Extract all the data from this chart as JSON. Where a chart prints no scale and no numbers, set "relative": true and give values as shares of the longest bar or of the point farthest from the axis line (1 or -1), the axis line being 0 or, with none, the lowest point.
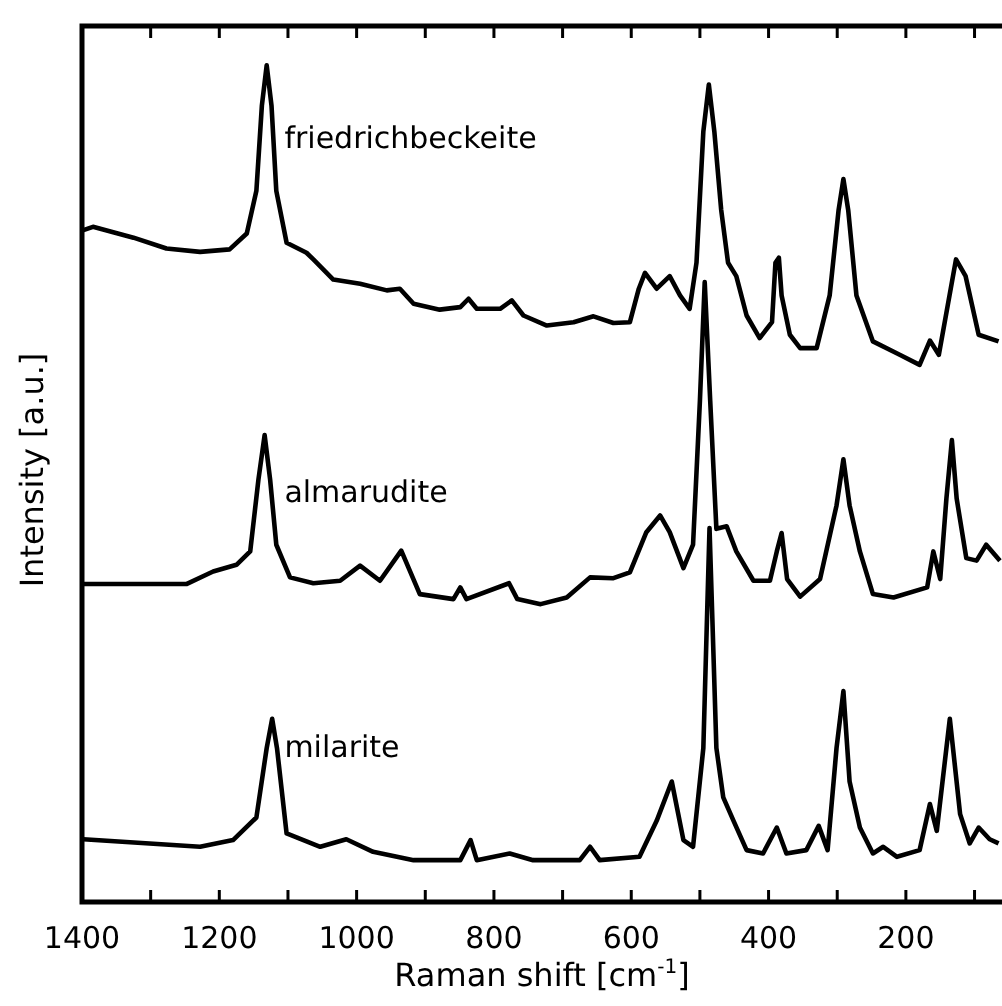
{
  "chart_data": {
    "type": "line",
    "relative": true,
    "xlabel": "Raman shift [cm$^{-1}$]",
    "ylabel": "Intensity [a.u.]",
    "xlim": [
      1400,
      60
    ],
    "xticks": [
      1400,
      {
        "value": 1300,
        "label": null
      },
      1200,
      {
        "value": 1100,
        "label": null
      },
      1000,
      {
        "value": 900,
        "label": null
      },
      800,
      {
        "value": 700,
        "label": null
      },
      600,
      {
        "value": 500,
        "label": null
      },
      400,
      {
        "value": 300,
        "label": null
      },
      200,
      {
        "value": 100,
        "label": null
      }
    ],
    "series": [
      {
        "name": "friedrichbeckeite",
        "color": "#000000",
        "x": [
          1398,
          1384,
          1325,
          1277,
          1228,
          1185,
          1160,
          1146,
          1138,
          1131,
          1124,
          1117,
          1102,
          1073,
          1063,
          1034,
          995,
          956,
          937,
          917,
          879,
          849,
          837,
          825,
          791,
          774,
          757,
          723,
          684,
          655,
          626,
          602,
          589,
          580,
          563,
          544,
          529,
          515,
          505,
          495,
          487,
          479,
          469,
          459,
          447,
          432,
          413,
          395,
          390,
          385,
          381,
          369,
          354,
          330,
          311,
          298,
          291,
          284,
          272,
          248,
          209,
          180,
          165,
          152,
          127,
          113,
          94,
          65
        ],
        "values": [
          0.803,
          0.807,
          0.794,
          0.781,
          0.777,
          0.78,
          0.799,
          0.85,
          0.952,
          1,
          0.952,
          0.85,
          0.788,
          0.776,
          0.768,
          0.744,
          0.739,
          0.731,
          0.733,
          0.715,
          0.708,
          0.711,
          0.721,
          0.709,
          0.709,
          0.719,
          0.701,
          0.689,
          0.693,
          0.7,
          0.692,
          0.693,
          0.733,
          0.752,
          0.733,
          0.748,
          0.725,
          0.709,
          0.764,
          0.921,
          0.977,
          0.921,
          0.827,
          0.764,
          0.748,
          0.701,
          0.674,
          0.693,
          0.764,
          0.77,
          0.725,
          0.678,
          0.662,
          0.662,
          0.725,
          0.827,
          0.864,
          0.827,
          0.725,
          0.67,
          0.654,
          0.642,
          0.671,
          0.654,
          0.768,
          0.748,
          0.678,
          0.67
        ]
      },
      {
        "name": "almarudite",
        "color": "#000000",
        "x": [
          1398,
          1248,
          1209,
          1175,
          1155,
          1143,
          1134,
          1126,
          1117,
          1097,
          1063,
          1024,
          995,
          966,
          935,
          908,
          859,
          849,
          840,
          778,
          766,
          732,
          694,
          660,
          626,
          602,
          578,
          558,
          544,
          524,
          510,
          500,
          493,
          485,
          476,
          461,
          447,
          422,
          398,
          388,
          381,
          373,
          354,
          325,
          301,
          291,
          282,
          267,
          248,
          218,
          169,
          160,
          150,
          141,
          133,
          126,
          112,
          97,
          83,
          63
        ],
        "values": [
          0.38,
          0.38,
          0.395,
          0.403,
          0.419,
          0.505,
          0.558,
          0.505,
          0.427,
          0.388,
          0.381,
          0.384,
          0.402,
          0.384,
          0.42,
          0.368,
          0.362,
          0.376,
          0.362,
          0.381,
          0.362,
          0.356,
          0.364,
          0.388,
          0.387,
          0.394,
          0.442,
          0.462,
          0.442,
          0.399,
          0.427,
          0.599,
          0.741,
          0.599,
          0.446,
          0.449,
          0.419,
          0.384,
          0.384,
          0.419,
          0.441,
          0.386,
          0.365,
          0.386,
          0.474,
          0.529,
          0.474,
          0.419,
          0.368,
          0.364,
          0.376,
          0.419,
          0.386,
          0.482,
          0.552,
          0.482,
          0.411,
          0.408,
          0.427,
          0.408
        ]
      },
      {
        "name": "milarite",
        "color": "#000000",
        "x": [
          1398,
          1228,
          1180,
          1146,
          1131,
          1123,
          1116,
          1102,
          1053,
          1015,
          976,
          917,
          849,
          834,
          825,
          777,
          743,
          675,
          660,
          646,
          588,
          563,
          541,
          524,
          510,
          495,
          486,
          476,
          466,
          451,
          432,
          408,
          388,
          374,
          345,
          327,
          314,
          301,
          291,
          282,
          267,
          248,
          233,
          213,
          180,
          165,
          155,
          136,
          121,
          107,
          94,
          78,
          65
        ],
        "values": [
          0.075,
          0.066,
          0.074,
          0.101,
          0.184,
          0.219,
          0.184,
          0.082,
          0.066,
          0.075,
          0.06,
          0.05,
          0.05,
          0.074,
          0.05,
          0.058,
          0.05,
          0.05,
          0.066,
          0.05,
          0.054,
          0.097,
          0.144,
          0.074,
          0.066,
          0.184,
          0.447,
          0.184,
          0.125,
          0.097,
          0.062,
          0.058,
          0.089,
          0.058,
          0.062,
          0.091,
          0.062,
          0.184,
          0.252,
          0.144,
          0.089,
          0.058,
          0.066,
          0.054,
          0.062,
          0.117,
          0.085,
          0.219,
          0.105,
          0.07,
          0.089,
          0.075,
          0.07
        ]
      }
    ]
  }
}
